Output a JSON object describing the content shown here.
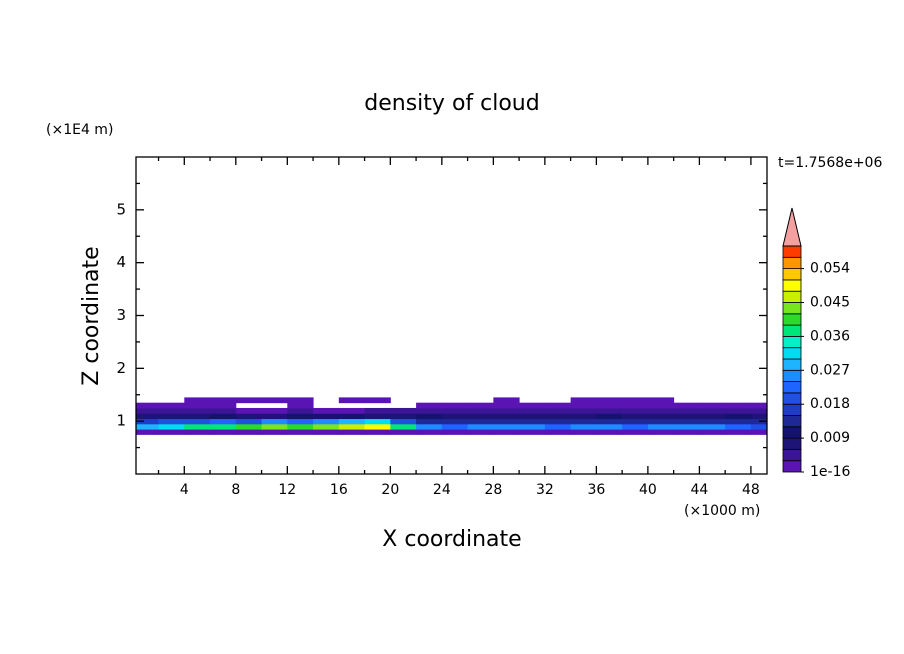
{
  "chart_data": {
    "type": "contour",
    "title": "density of cloud",
    "xlabel": "X coordinate",
    "ylabel": "Z coordinate",
    "x_unit": "(×1000 m)",
    "y_unit": "(×1E4 m)",
    "time_label": "t=1.7568e+06",
    "xlim": [
      0.25,
      49.25
    ],
    "xticks": [
      4,
      8,
      12,
      16,
      20,
      24,
      28,
      32,
      36,
      40,
      44,
      48
    ],
    "xminorticks": [
      2,
      6,
      10,
      14,
      18,
      22,
      26,
      30,
      34,
      38,
      42,
      46
    ],
    "ylim": [
      0,
      6
    ],
    "yticks": [
      1,
      2,
      3,
      4,
      5
    ],
    "yminorticks": [
      0.5,
      1.5,
      2.5,
      3.5,
      4.5,
      5.5
    ],
    "field": {
      "x": [
        1,
        3,
        5,
        7,
        9,
        11,
        13,
        15,
        17,
        19,
        21,
        23,
        25,
        27,
        29,
        31,
        33,
        35,
        37,
        39,
        41,
        43,
        45,
        47,
        49
      ],
      "z": [
        0.8,
        0.9,
        1.0,
        1.1,
        1.2,
        1.3,
        1.4
      ],
      "values": [
        [
          0.002,
          0.002,
          0.002,
          0.002,
          0.002,
          0.002,
          0.002,
          0.002,
          0.002,
          0.002,
          0.002,
          0.002,
          0.002,
          0.002,
          0.002,
          0.002,
          0.002,
          0.002,
          0.002,
          0.002,
          0.002,
          0.002,
          0.002,
          0.002,
          0.002
        ],
        [
          0.028,
          0.032,
          0.036,
          0.038,
          0.04,
          0.042,
          0.04,
          0.044,
          0.046,
          0.05,
          0.036,
          0.024,
          0.022,
          0.024,
          0.026,
          0.024,
          0.022,
          0.025,
          0.024,
          0.022,
          0.024,
          0.026,
          0.024,
          0.022,
          0.02
        ],
        [
          0.016,
          0.018,
          0.02,
          0.022,
          0.02,
          0.024,
          0.022,
          0.026,
          0.028,
          0.03,
          0.018,
          0.014,
          0.012,
          0.013,
          0.012,
          0.014,
          0.012,
          0.013,
          0.012,
          0.014,
          0.012,
          0.013,
          0.012,
          0.014,
          0.012
        ],
        [
          0.008,
          0.007,
          0.008,
          0.009,
          0.008,
          0.008,
          0.009,
          0.01,
          0.009,
          0.008,
          0.008,
          0.009,
          0.008,
          0.007,
          0.008,
          0.008,
          0.007,
          0.008,
          0.009,
          0.008,
          0.008,
          0.007,
          0.008,
          0.009,
          0.008
        ],
        [
          0.004,
          0.003,
          0.003,
          0.004,
          0.002,
          0.002,
          0.003,
          0.002,
          0.002,
          0.003,
          0.004,
          0.005,
          0.004,
          0.004,
          0.003,
          0.004,
          0.004,
          0.005,
          0.004,
          0.003,
          0.004,
          0.004,
          0.004,
          0.005,
          0.004
        ],
        [
          0.002,
          0.002,
          0.002,
          0.001,
          null,
          null,
          0.001,
          null,
          null,
          null,
          null,
          0.002,
          0.002,
          0.002,
          0.002,
          0.002,
          0.002,
          0.002,
          0.002,
          0.002,
          0.002,
          0.002,
          0.002,
          0.001,
          0.002
        ],
        [
          null,
          null,
          0.001,
          0.001,
          0.001,
          0.001,
          0.001,
          null,
          0.001,
          0.001,
          null,
          null,
          null,
          null,
          0.001,
          null,
          null,
          0.001,
          0.001,
          0.001,
          0.001,
          null,
          null,
          null,
          null
        ]
      ]
    },
    "levels": [
      1e-16,
      0.003,
      0.006,
      0.009,
      0.012,
      0.015,
      0.018,
      0.021,
      0.024,
      0.027,
      0.03,
      0.033,
      0.036,
      0.039,
      0.042,
      0.045,
      0.048,
      0.051,
      0.054,
      0.057,
      0.06
    ],
    "level_colors": [
      "#5a14b4",
      "#3c1496",
      "#1e1478",
      "#14146e",
      "#1e2896",
      "#1e3cc8",
      "#1e50e6",
      "#1e64ff",
      "#1e8cff",
      "#1eb4ff",
      "#00dcf0",
      "#00f0c8",
      "#00e678",
      "#28dc28",
      "#78e61e",
      "#c8f000",
      "#ffff00",
      "#ffc800",
      "#ff9600",
      "#ff3c00"
    ],
    "overflow_color": "#f4a0a0",
    "colorbar_ticks": [
      1e-16,
      0.009,
      0.018,
      0.027,
      0.036,
      0.045,
      0.054
    ]
  }
}
